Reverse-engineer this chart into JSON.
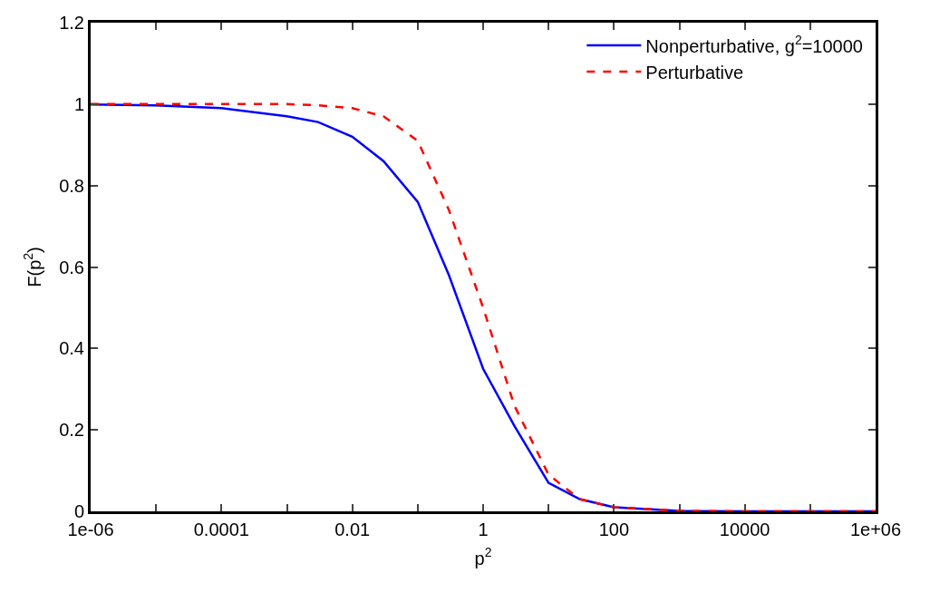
{
  "chart_data": {
    "type": "line",
    "xlabel": "p$^{2}$",
    "ylabel": "F(p$^{2}$)",
    "log": "x",
    "x": [
      1e-06,
      1e-05,
      0.0001,
      0.001,
      0.003,
      0.01,
      0.03,
      0.1,
      0.3,
      1,
      3,
      10,
      30,
      100,
      1000,
      10000,
      100000,
      1000000
    ],
    "series": [
      {
        "name": "Nonperturbative, g$^{2}$=10000",
        "color": "#0000ff",
        "line_style": "solid",
        "values": [
          0.999,
          0.997,
          0.99,
          0.97,
          0.956,
          0.92,
          0.86,
          0.76,
          0.58,
          0.35,
          0.21,
          0.07,
          0.03,
          0.01,
          0.001,
          0,
          0,
          0
        ]
      },
      {
        "name": "Perturbative",
        "color": "#ff0000",
        "line_style": "dashed",
        "values": [
          1,
          1,
          1,
          1,
          0.997,
          0.99,
          0.97,
          0.91,
          0.74,
          0.5,
          0.26,
          0.09,
          0.03,
          0.01,
          0.001,
          0,
          0,
          0
        ]
      }
    ],
    "xlim": [
      1e-06,
      1000000
    ],
    "xticks": [
      {
        "value": 1e-06,
        "label": "1e-06"
      },
      {
        "value": 1e-05,
        "label": null
      },
      {
        "value": 0.0001,
        "label": "0.0001"
      },
      {
        "value": 0.001,
        "label": null
      },
      {
        "value": 0.01,
        "label": "0.01"
      },
      {
        "value": 0.1,
        "label": null
      },
      {
        "value": 1,
        "label": "1"
      },
      {
        "value": 10,
        "label": null
      },
      {
        "value": 100,
        "label": "100"
      },
      {
        "value": 1000,
        "label": null
      },
      {
        "value": 10000,
        "label": "10000"
      },
      {
        "value": 100000,
        "label": null
      },
      {
        "value": 1000000,
        "label": "1e+06"
      }
    ],
    "ylim": [
      0,
      1.2
    ],
    "yticks": [
      0,
      0.2,
      0.4,
      0.6,
      0.8,
      1,
      1.2
    ],
    "legend": "top right",
    "marker": "none"
  }
}
